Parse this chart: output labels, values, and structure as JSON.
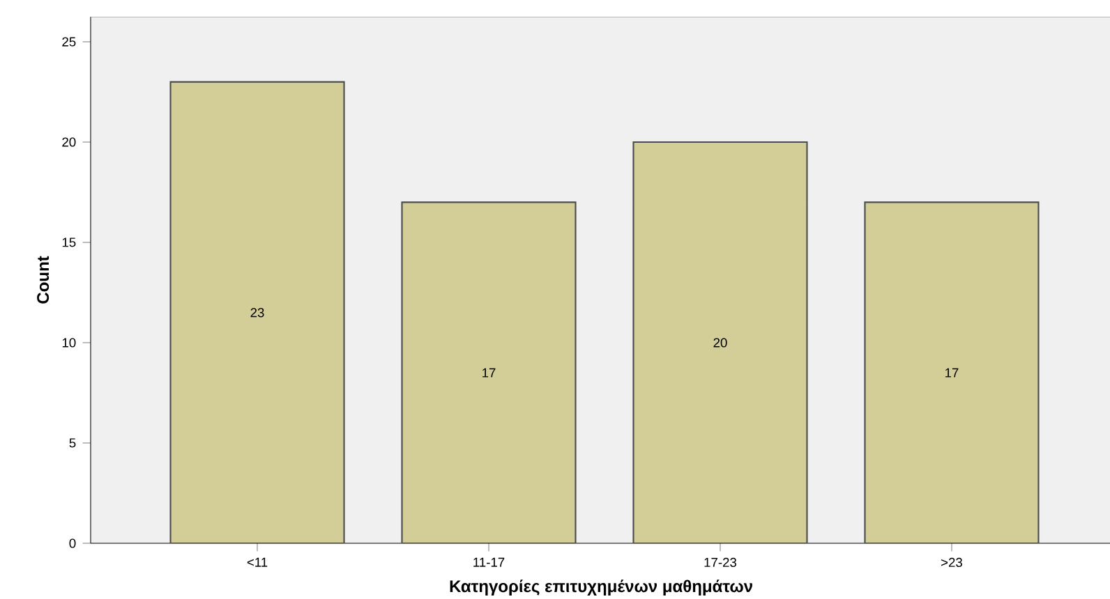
{
  "chart_data": {
    "type": "bar",
    "xlabel": "Κατηγορίες επιτυχημένων μαθημάτων",
    "ylabel": "Count",
    "categories": [
      "<11",
      "11-17",
      "17-23",
      ">23"
    ],
    "values": [
      23,
      17,
      20,
      17
    ],
    "color": "#d3cd98",
    "ylim": [
      0,
      26.25
    ],
    "yticks": [
      0,
      5,
      10,
      15,
      20,
      25
    ],
    "data_labels": true,
    "grid": false
  }
}
